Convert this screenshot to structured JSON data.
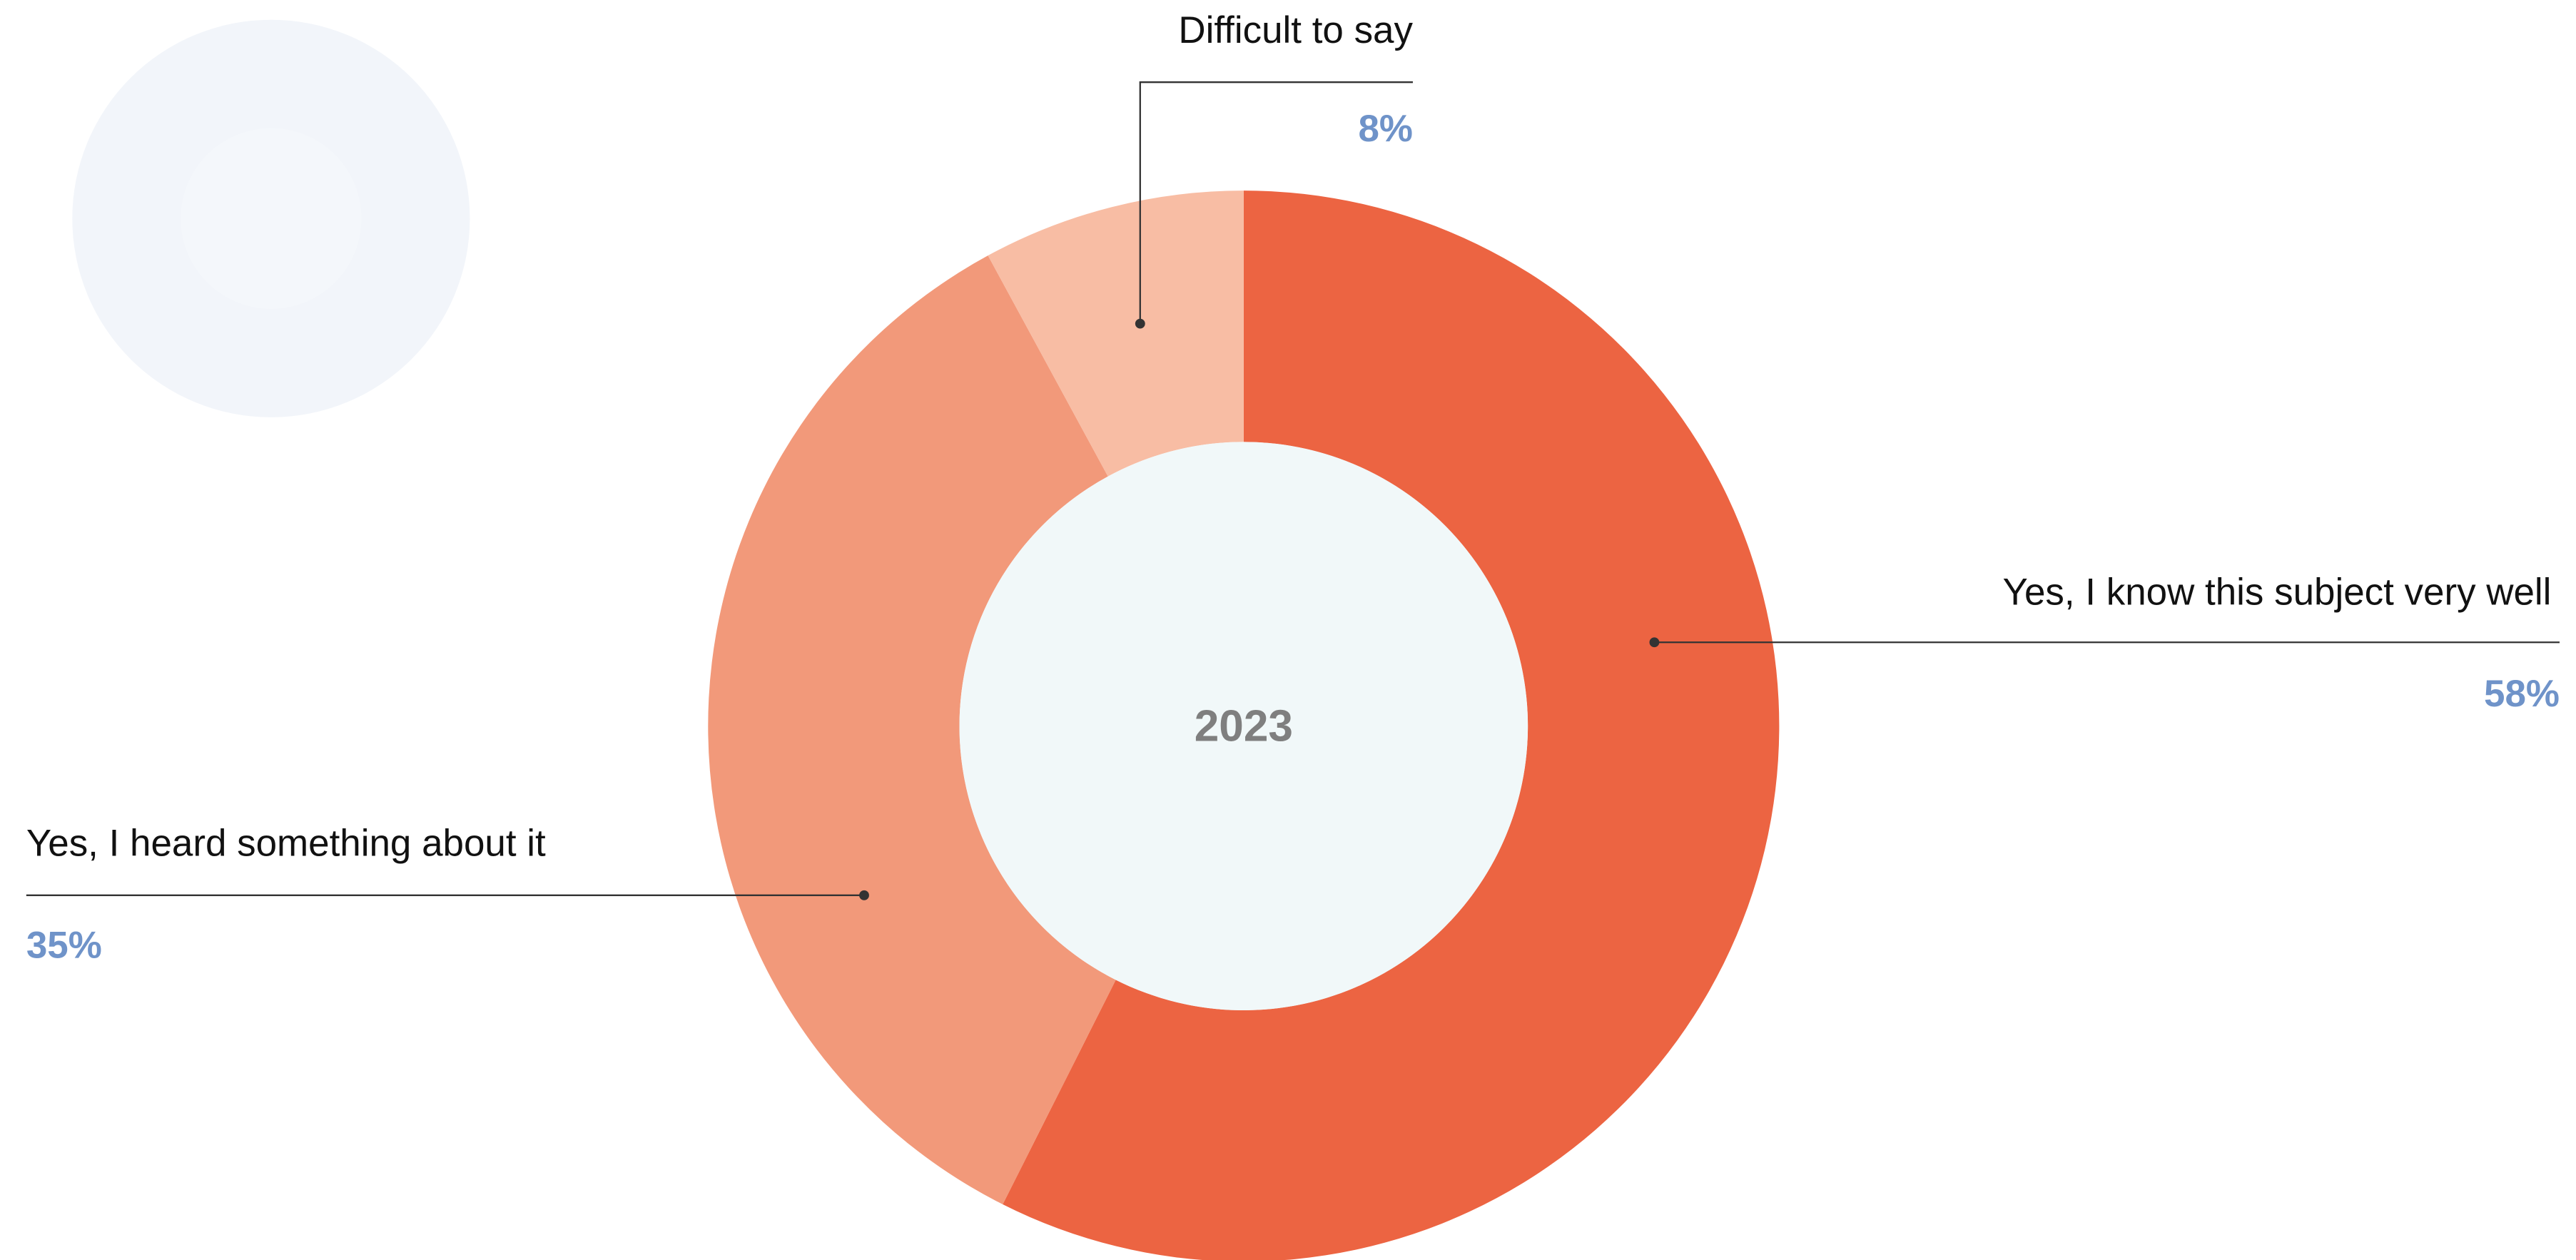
{
  "chart_data": {
    "type": "donut",
    "center_label": "2023",
    "categories": [
      "Yes, I know this subject very well",
      "Yes, I heard something about it",
      "Difficult to say"
    ],
    "values": [
      58,
      35,
      8
    ],
    "value_labels": [
      "58%",
      "35%",
      "8%"
    ],
    "colors": [
      "#ec6442",
      "#f2997a",
      "#f8bda4"
    ]
  }
}
